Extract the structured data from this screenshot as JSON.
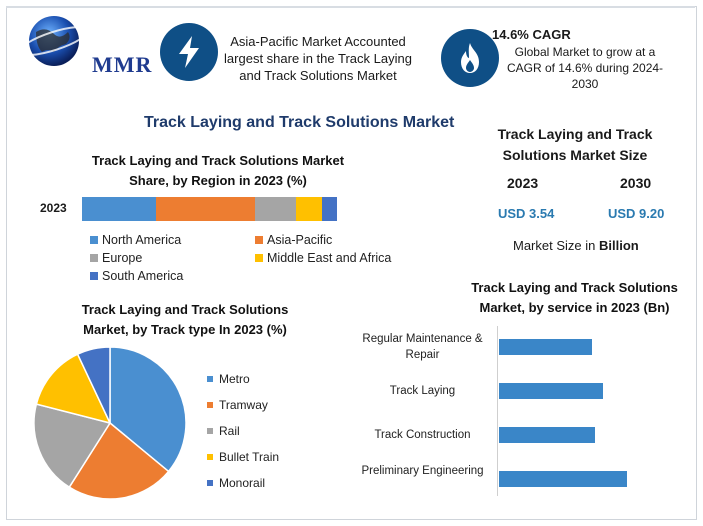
{
  "header": {
    "logo_text": "MMR",
    "callout_1": "Asia-Pacific Market Accounted largest share in the Track Laying and Track Solutions Market",
    "callout_1_icon": "lightning-bolt-icon",
    "callout_2_title": "14.6% CAGR",
    "callout_2_body": "Global Market to grow at a CAGR of 14.6% during 2024-2030",
    "callout_2_icon": "flame-icon",
    "accent": "#0f4f86"
  },
  "main_title": "Track Laying and Track Solutions Market",
  "size_block": {
    "title": "Track Laying and Track Solutions Market Size",
    "year_1": "2023",
    "year_2": "2030",
    "value_1": "USD 3.54",
    "value_2": "USD 9.20",
    "unit_prefix": "Market Size in ",
    "unit_bold": "Billion"
  },
  "chart_data": [
    {
      "type": "bar",
      "orientation": "horizontal-stacked",
      "title": "Track Laying and Track Solutions Market Share, by Region in 2023 (%)",
      "categories": [
        "2023"
      ],
      "series": [
        {
          "name": "North America",
          "values": [
            29
          ],
          "color": "#4a8fd0"
        },
        {
          "name": "Asia-Pacific",
          "values": [
            39
          ],
          "color": "#ed7d31"
        },
        {
          "name": "Europe",
          "values": [
            16
          ],
          "color": "#a5a5a5"
        },
        {
          "name": "Middle East and Africa",
          "values": [
            10
          ],
          "color": "#ffc000"
        },
        {
          "name": "South America",
          "values": [
            6
          ],
          "color": "#4472c4"
        }
      ]
    },
    {
      "type": "pie",
      "title": "Track Laying and Track Solutions Market, by Track type In 2023 (%)",
      "slices": [
        {
          "name": "Metro",
          "value": 36,
          "color": "#4a8fd0"
        },
        {
          "name": "Tramway",
          "value": 23,
          "color": "#ed7d31"
        },
        {
          "name": "Rail",
          "value": 20,
          "color": "#a5a5a5"
        },
        {
          "name": "Bullet Train",
          "value": 14,
          "color": "#ffc000"
        },
        {
          "name": "Monorail",
          "value": 7,
          "color": "#4472c4"
        }
      ]
    },
    {
      "type": "bar",
      "orientation": "horizontal",
      "title": "Track Laying and Track Solutions Market, by service in 2023 (Bn)",
      "categories": [
        "Regular Maintenance & Repair",
        "Track Laying",
        "Track Construction",
        "Preliminary Engineering"
      ],
      "values": [
        0.73,
        0.81,
        0.75,
        1.0
      ],
      "color": "#3a86c8",
      "xlim": [
        0,
        1.0
      ]
    }
  ]
}
